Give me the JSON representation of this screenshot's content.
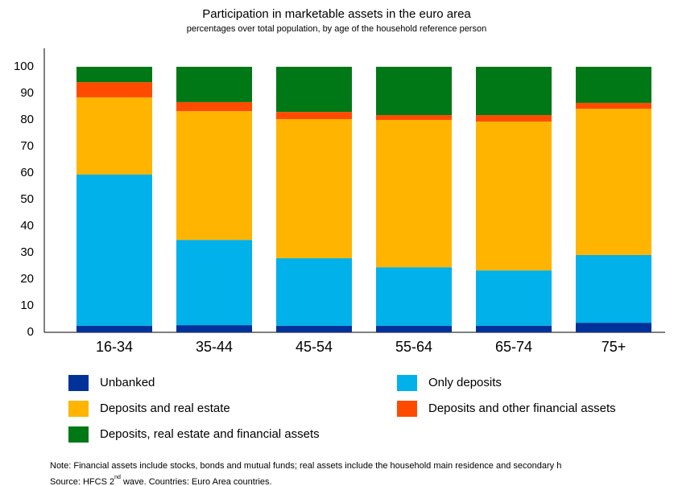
{
  "chart_data": {
    "type": "stacked_bar",
    "title": "Participation in marketable assets in the euro area",
    "subtitle": "percentages over total population, by age of the household reference person",
    "categories": [
      "16-34",
      "35-44",
      "45-54",
      "55-64",
      "65-74",
      "75+"
    ],
    "series": [
      {
        "name": "Unbanked",
        "color": "#003299",
        "values": [
          2.5,
          2.7,
          2.5,
          2.5,
          2.5,
          3.6
        ]
      },
      {
        "name": "Only deposits",
        "color": "#00b1ea",
        "values": [
          56.9,
          32.1,
          25.4,
          22.0,
          20.8,
          25.5
        ]
      },
      {
        "name": "Deposits and real estate",
        "color": "#ffb400",
        "values": [
          29.1,
          48.5,
          52.4,
          55.5,
          56.1,
          55.1
        ]
      },
      {
        "name": "Deposits and other financial assets",
        "color": "#ff4b00",
        "values": [
          5.7,
          3.4,
          2.7,
          1.8,
          2.4,
          2.2
        ]
      },
      {
        "name": "Deposits, real estate and financial assets",
        "color": "#007816",
        "values": [
          5.8,
          13.3,
          17.0,
          18.2,
          18.2,
          13.6
        ]
      }
    ],
    "ylim": [
      0,
      100
    ],
    "yticks": [
      0,
      10,
      20,
      30,
      40,
      50,
      60,
      70,
      80,
      90,
      100
    ],
    "grid": false,
    "notes": [
      "Note: Financial assets include stocks, bonds and mutual funds; real assets include the household main residence and secondary h",
      "Source: HFCS 2",
      "nd",
      " wave. Countries: Euro Area countries."
    ]
  }
}
